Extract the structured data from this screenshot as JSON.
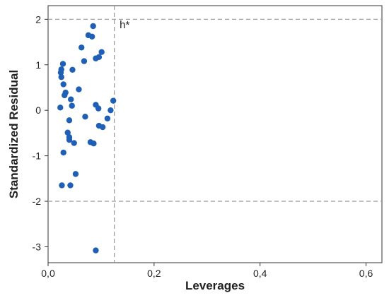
{
  "chart_data": {
    "type": "scatter",
    "title": "",
    "xlabel": "Leverages",
    "ylabel": "Standardized Residual",
    "xlim": [
      0.0,
      0.63
    ],
    "ylim": [
      -3.35,
      2.3
    ],
    "x_ticks": [
      0.0,
      0.2,
      0.4,
      0.6
    ],
    "x_tick_labels": [
      "0,0",
      "0,2",
      "0,4",
      "0,6"
    ],
    "y_ticks": [
      -3,
      -2,
      -1,
      0,
      1,
      2
    ],
    "y_tick_labels": [
      "-3",
      "-2",
      "-1",
      "0",
      "1",
      "2"
    ],
    "grid": false,
    "reference_lines": {
      "horizontal": [
        2,
        -2
      ],
      "vertical": [
        0.125
      ],
      "style": "dashed",
      "color": "#9a9a9a"
    },
    "annotation": {
      "text": "h*",
      "x": 0.135,
      "y": 1.8
    },
    "marker_color": "#1f5fb5",
    "points": [
      {
        "x": 0.085,
        "y": 1.85
      },
      {
        "x": 0.076,
        "y": 1.65
      },
      {
        "x": 0.083,
        "y": 1.62
      },
      {
        "x": 0.063,
        "y": 1.38
      },
      {
        "x": 0.101,
        "y": 1.28
      },
      {
        "x": 0.096,
        "y": 1.17
      },
      {
        "x": 0.09,
        "y": 1.14
      },
      {
        "x": 0.068,
        "y": 1.08
      },
      {
        "x": 0.028,
        "y": 1.02
      },
      {
        "x": 0.025,
        "y": 0.9
      },
      {
        "x": 0.046,
        "y": 0.89
      },
      {
        "x": 0.024,
        "y": 0.83
      },
      {
        "x": 0.025,
        "y": 0.73
      },
      {
        "x": 0.029,
        "y": 0.57
      },
      {
        "x": 0.058,
        "y": 0.46
      },
      {
        "x": 0.033,
        "y": 0.39
      },
      {
        "x": 0.031,
        "y": 0.33
      },
      {
        "x": 0.043,
        "y": 0.24
      },
      {
        "x": 0.123,
        "y": 0.21
      },
      {
        "x": 0.09,
        "y": 0.12
      },
      {
        "x": 0.045,
        "y": 0.1
      },
      {
        "x": 0.023,
        "y": 0.06
      },
      {
        "x": 0.095,
        "y": 0.04
      },
      {
        "x": 0.118,
        "y": 0.0
      },
      {
        "x": 0.07,
        "y": -0.14
      },
      {
        "x": 0.112,
        "y": -0.18
      },
      {
        "x": 0.04,
        "y": -0.22
      },
      {
        "x": 0.096,
        "y": -0.34
      },
      {
        "x": 0.103,
        "y": -0.37
      },
      {
        "x": 0.037,
        "y": -0.49
      },
      {
        "x": 0.04,
        "y": -0.59
      },
      {
        "x": 0.04,
        "y": -0.65
      },
      {
        "x": 0.08,
        "y": -0.7
      },
      {
        "x": 0.049,
        "y": -0.72
      },
      {
        "x": 0.086,
        "y": -0.73
      },
      {
        "x": 0.029,
        "y": -0.93
      },
      {
        "x": 0.052,
        "y": -1.4
      },
      {
        "x": 0.026,
        "y": -1.65
      },
      {
        "x": 0.042,
        "y": -1.65
      },
      {
        "x": 0.09,
        "y": -3.08
      }
    ]
  }
}
